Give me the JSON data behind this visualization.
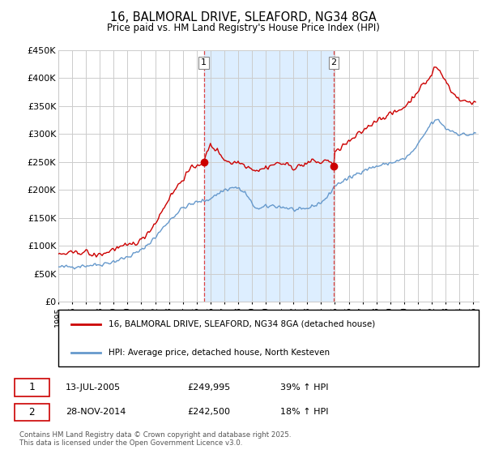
{
  "title": "16, BALMORAL DRIVE, SLEAFORD, NG34 8GA",
  "subtitle": "Price paid vs. HM Land Registry's House Price Index (HPI)",
  "ylabel_ticks": [
    "£0",
    "£50K",
    "£100K",
    "£150K",
    "£200K",
    "£250K",
    "£300K",
    "£350K",
    "£400K",
    "£450K"
  ],
  "ytick_vals": [
    0,
    50000,
    100000,
    150000,
    200000,
    250000,
    300000,
    350000,
    400000,
    450000
  ],
  "ylim": [
    0,
    450000
  ],
  "vline1_year": 2005.53,
  "vline2_year": 2014.91,
  "sale1_date": "13-JUL-2005",
  "sale1_price": "£249,995",
  "sale1_hpi": "39% ↑ HPI",
  "sale2_date": "28-NOV-2014",
  "sale2_price": "£242,500",
  "sale2_hpi": "18% ↑ HPI",
  "legend1_label": "16, BALMORAL DRIVE, SLEAFORD, NG34 8GA (detached house)",
  "legend2_label": "HPI: Average price, detached house, North Kesteven",
  "footnote": "Contains HM Land Registry data © Crown copyright and database right 2025.\nThis data is licensed under the Open Government Licence v3.0.",
  "red_color": "#cc0000",
  "blue_color": "#6699cc",
  "shade_color": "#ddeeff",
  "vline_color": "#dd4444",
  "background_color": "#ffffff",
  "grid_color": "#cccccc"
}
